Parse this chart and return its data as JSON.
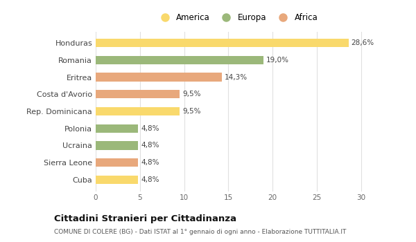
{
  "categories": [
    "Cuba",
    "Sierra Leone",
    "Ucraina",
    "Polonia",
    "Rep. Dominicana",
    "Costa d'Avorio",
    "Eritrea",
    "Romania",
    "Honduras"
  ],
  "values": [
    4.8,
    4.8,
    4.8,
    4.8,
    9.5,
    9.5,
    14.3,
    19.0,
    28.6
  ],
  "labels": [
    "4,8%",
    "4,8%",
    "4,8%",
    "4,8%",
    "9,5%",
    "9,5%",
    "14,3%",
    "19,0%",
    "28,6%"
  ],
  "colors": [
    "#F9D96C",
    "#E8A87C",
    "#9BB87A",
    "#9BB87A",
    "#F9D96C",
    "#E8A87C",
    "#E8A87C",
    "#9BB87A",
    "#F9D96C"
  ],
  "legend": [
    {
      "label": "America",
      "color": "#F9D96C"
    },
    {
      "label": "Europa",
      "color": "#9BB87A"
    },
    {
      "label": "Africa",
      "color": "#E8A87C"
    }
  ],
  "xlim": [
    0,
    32
  ],
  "xticks": [
    0,
    5,
    10,
    15,
    20,
    25,
    30
  ],
  "title": "Cittadini Stranieri per Cittadinanza",
  "subtitle": "COMUNE DI COLERE (BG) - Dati ISTAT al 1° gennaio di ogni anno - Elaborazione TUTTITALIA.IT",
  "bg_color": "#FFFFFF",
  "grid_color": "#E0E0E0",
  "bar_height": 0.5
}
